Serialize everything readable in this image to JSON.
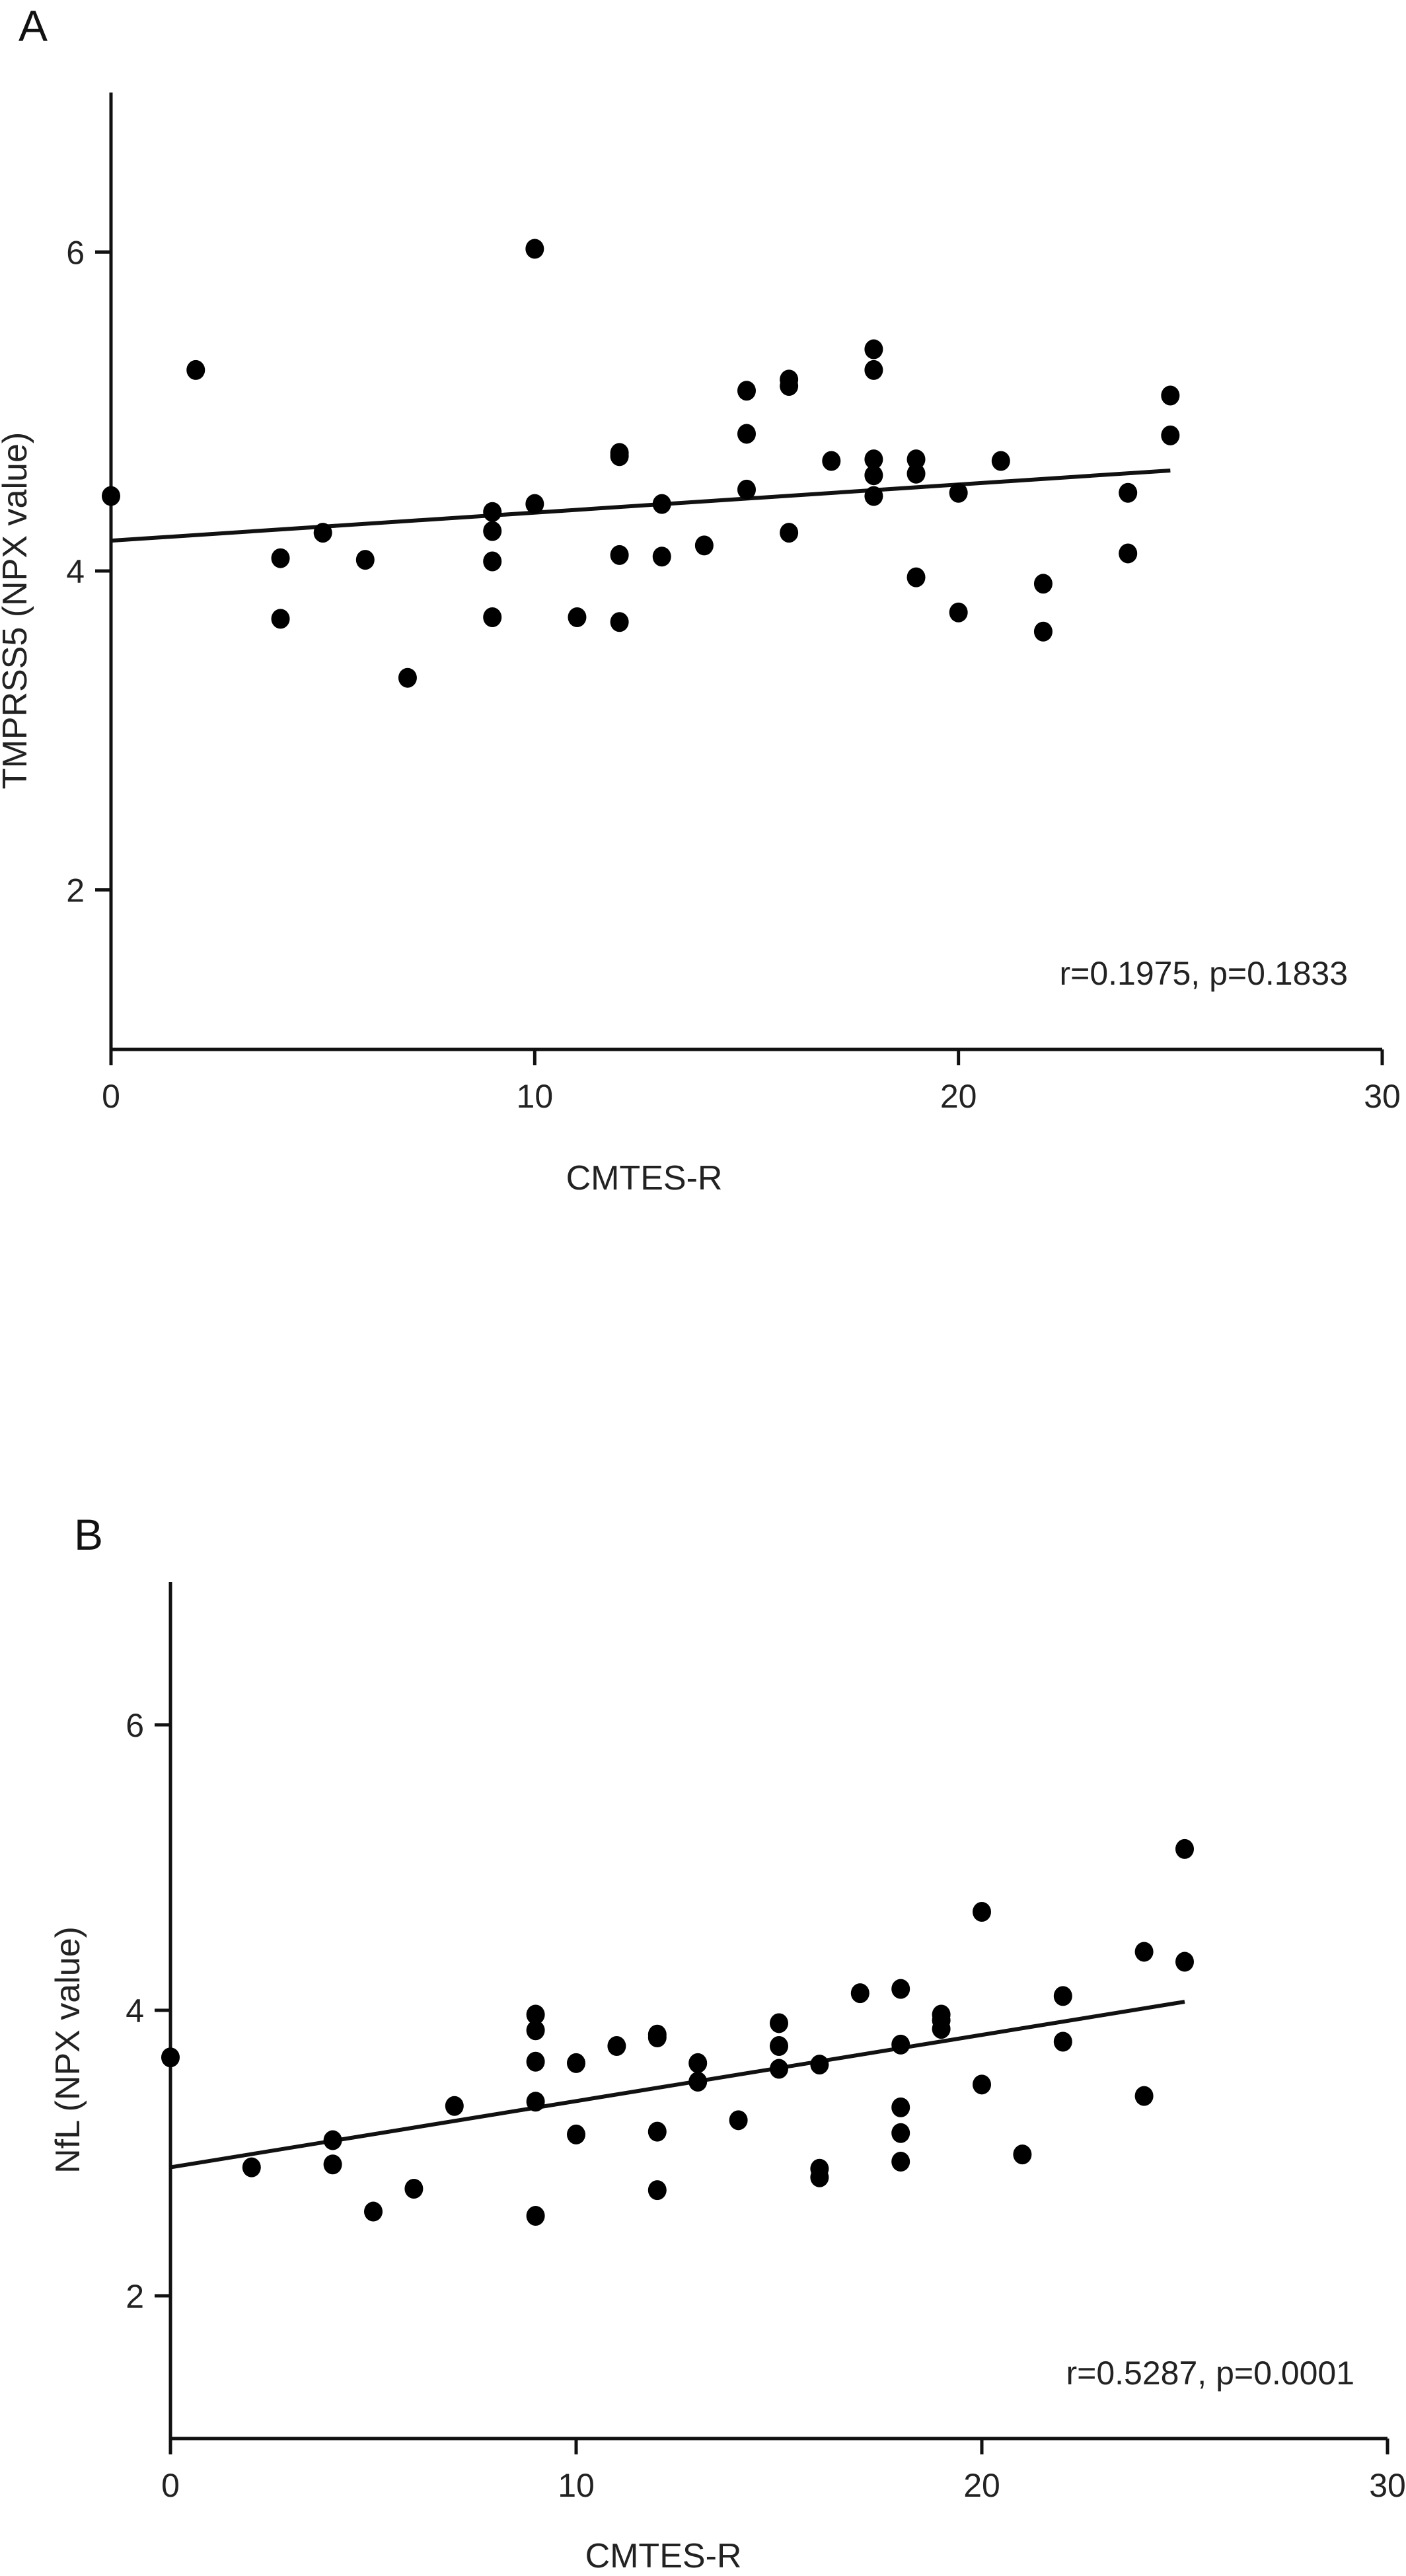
{
  "chart_data": [
    {
      "type": "scatter",
      "panel_label": "A",
      "xlabel": "CMTES-R",
      "ylabel": "TMPRSS5 (NPX value)",
      "xlim": [
        0,
        30
      ],
      "ylim": [
        1,
        7
      ],
      "xticks": [
        0,
        10,
        20,
        30
      ],
      "yticks": [
        2,
        4,
        6
      ],
      "annotation": "r=0.1975, p=0.1833",
      "fit_line": {
        "x": [
          0,
          25
        ],
        "y": [
          4.19,
          4.63
        ]
      },
      "points": [
        [
          0,
          4.47
        ],
        [
          2,
          5.26
        ],
        [
          4,
          4.08
        ],
        [
          4,
          3.7
        ],
        [
          5,
          4.24
        ],
        [
          6,
          4.07
        ],
        [
          7,
          3.33
        ],
        [
          9,
          4.37
        ],
        [
          9,
          4.25
        ],
        [
          9,
          4.06
        ],
        [
          9,
          3.71
        ],
        [
          10,
          6.02
        ],
        [
          10,
          4.42
        ],
        [
          11,
          3.71
        ],
        [
          12,
          4.74
        ],
        [
          12,
          4.72
        ],
        [
          12,
          4.1
        ],
        [
          12,
          3.68
        ],
        [
          13,
          4.42
        ],
        [
          13,
          4.09
        ],
        [
          14,
          4.16
        ],
        [
          15,
          5.13
        ],
        [
          15,
          4.86
        ],
        [
          15,
          4.51
        ],
        [
          16,
          5.2
        ],
        [
          16,
          5.16
        ],
        [
          16,
          4.24
        ],
        [
          17,
          4.69
        ],
        [
          18,
          5.39
        ],
        [
          18,
          5.26
        ],
        [
          18,
          4.7
        ],
        [
          18,
          4.6
        ],
        [
          18,
          4.47
        ],
        [
          19,
          4.7
        ],
        [
          19,
          4.61
        ],
        [
          19,
          3.96
        ],
        [
          20,
          4.49
        ],
        [
          20,
          3.74
        ],
        [
          21,
          4.69
        ],
        [
          22,
          3.92
        ],
        [
          22,
          3.62
        ],
        [
          24,
          4.49
        ],
        [
          24,
          4.11
        ],
        [
          25,
          5.1
        ],
        [
          25,
          4.85
        ]
      ]
    },
    {
      "type": "scatter",
      "panel_label": "B",
      "xlabel": "CMTES-R",
      "ylabel": "NfL (NPX value)",
      "xlim": [
        0,
        30
      ],
      "ylim": [
        1,
        7
      ],
      "xticks": [
        0,
        10,
        20,
        30
      ],
      "yticks": [
        2,
        4,
        6
      ],
      "annotation": "r=0.5287, p=0.0001",
      "fit_line": {
        "x": [
          0,
          25
        ],
        "y": [
          2.9,
          4.06
        ]
      },
      "points": [
        [
          0,
          3.67
        ],
        [
          2,
          2.9
        ],
        [
          4,
          3.09
        ],
        [
          4,
          2.92
        ],
        [
          5,
          2.59
        ],
        [
          6,
          2.75
        ],
        [
          7,
          3.33
        ],
        [
          9,
          3.97
        ],
        [
          9,
          3.86
        ],
        [
          9,
          3.64
        ],
        [
          9,
          3.36
        ],
        [
          9,
          2.56
        ],
        [
          10,
          3.63
        ],
        [
          10,
          3.13
        ],
        [
          11,
          3.75
        ],
        [
          12,
          3.83
        ],
        [
          12,
          3.81
        ],
        [
          12,
          3.15
        ],
        [
          12,
          2.74
        ],
        [
          13,
          3.63
        ],
        [
          13,
          3.5
        ],
        [
          14,
          3.23
        ],
        [
          15,
          3.91
        ],
        [
          15,
          3.75
        ],
        [
          15,
          3.59
        ],
        [
          16,
          3.62
        ],
        [
          16,
          2.89
        ],
        [
          16,
          2.83
        ],
        [
          17,
          4.12
        ],
        [
          18,
          4.15
        ],
        [
          18,
          3.76
        ],
        [
          18,
          3.32
        ],
        [
          18,
          3.14
        ],
        [
          18,
          2.94
        ],
        [
          19,
          3.97
        ],
        [
          19,
          3.93
        ],
        [
          19,
          3.87
        ],
        [
          20,
          4.69
        ],
        [
          20,
          3.48
        ],
        [
          21,
          2.99
        ],
        [
          22,
          4.1
        ],
        [
          22,
          3.78
        ],
        [
          24,
          4.41
        ],
        [
          24,
          3.4
        ],
        [
          25,
          5.13
        ],
        [
          25,
          4.34
        ]
      ]
    }
  ]
}
